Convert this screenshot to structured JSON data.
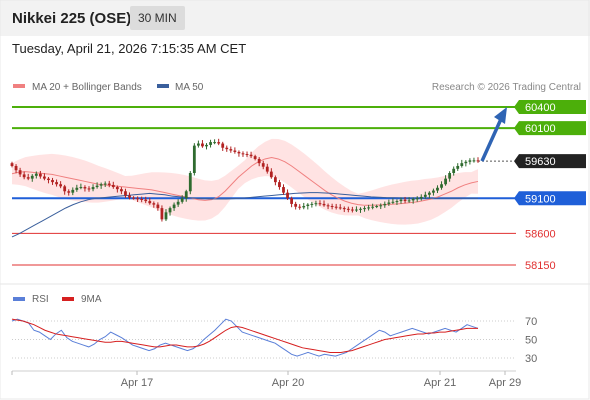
{
  "header": {
    "title": "Nikkei 225 (OSE)",
    "timeframe": "30 MIN",
    "timestamp": "Tuesday, April 21, 2026 7:15:35 AM CET"
  },
  "legend": {
    "ma20_bb": "MA 20 + Bollinger Bands",
    "ma50": "MA 50",
    "credit": "Research © 2026 Trading Central"
  },
  "rsi_legend": {
    "rsi": "RSI",
    "ma9": "9MA"
  },
  "colors": {
    "resistance": "#4caf0a",
    "support": "#1f5fd8",
    "target_red": "#e03030",
    "bollinger_fill": "#ffdede",
    "ma20": "#f08080",
    "ma50": "#3a5f9c",
    "candle_up": "#2f6b2f",
    "candle_down": "#b22222",
    "current_price": "#222222",
    "forecast_arrow": "#2f64b4",
    "rsi_line": "#5a7fd8",
    "rsi_ma": "#d62020"
  },
  "chart_data": {
    "type": "candlestick",
    "instrument": "Nikkei 225 (OSE)",
    "interval": "30 MIN",
    "ylim": [
      58050,
      60500
    ],
    "x_ticks": [
      "Apr 17",
      "Apr 20",
      "Apr 21",
      "Apr 29"
    ],
    "levels": [
      {
        "label": "60400",
        "value": 60400,
        "kind": "resistance"
      },
      {
        "label": "60100",
        "value": 60100,
        "kind": "resistance"
      },
      {
        "label": "59630",
        "value": 59630,
        "kind": "current"
      },
      {
        "label": "59100",
        "value": 59100,
        "kind": "support"
      },
      {
        "label": "58600",
        "value": 58600,
        "kind": "target"
      },
      {
        "label": "58150",
        "value": 58150,
        "kind": "target"
      }
    ],
    "close_series": [
      59560,
      59500,
      59440,
      59400,
      59380,
      59420,
      59450,
      59410,
      59380,
      59360,
      59330,
      59300,
      59270,
      59200,
      59180,
      59220,
      59250,
      59260,
      59240,
      59230,
      59260,
      59280,
      59300,
      59310,
      59290,
      59260,
      59230,
      59200,
      59140,
      59110,
      59100,
      59090,
      59080,
      59060,
      59030,
      59010,
      58960,
      58800,
      58900,
      58960,
      59010,
      59050,
      59100,
      59200,
      59460,
      59850,
      59880,
      59840,
      59860,
      59900,
      59900,
      59880,
      59820,
      59800,
      59780,
      59760,
      59740,
      59730,
      59720,
      59700,
      59660,
      59600,
      59550,
      59480,
      59400,
      59330,
      59260,
      59180,
      59100,
      59020,
      58980,
      58970,
      58990,
      59010,
      59020,
      59030,
      59020,
      59000,
      58990,
      58980,
      58970,
      58960,
      58950,
      58940,
      58930,
      58940,
      58950,
      58960,
      58970,
      58980,
      58990,
      59000,
      59020,
      59040,
      59050,
      59060,
      59080,
      59060,
      59070,
      59090,
      59100,
      59120,
      59150,
      59180,
      59210,
      59250,
      59300,
      59380,
      59460,
      59520,
      59560,
      59600,
      59620,
      59640,
      59640,
      59630
    ],
    "ma20_series": [
      59450,
      59470,
      59480,
      59470,
      59460,
      59450,
      59440,
      59420,
      59400,
      59380,
      59360,
      59340,
      59320,
      59300,
      59290,
      59280,
      59270,
      59260,
      59250,
      59240,
      59230,
      59220,
      59200,
      59180,
      59160,
      59140,
      59120,
      59100,
      59080,
      59070,
      59080,
      59120,
      59200,
      59300,
      59400,
      59480,
      59560,
      59620,
      59660,
      59680,
      59660,
      59620,
      59560,
      59490,
      59420,
      59350,
      59280,
      59210,
      59150,
      59100,
      59060,
      59030,
      59010,
      59000,
      59000,
      59005,
      59010,
      59015,
      59020,
      59030,
      59040,
      59050,
      59070,
      59090,
      59120,
      59160,
      59200,
      59250,
      59290,
      59320,
      59340
    ],
    "ma50_series": [
      58550,
      58600,
      58660,
      58720,
      58780,
      58840,
      58900,
      58960,
      59010,
      59050,
      59080,
      59100,
      59110,
      59120,
      59130,
      59140,
      59150,
      59160,
      59170,
      59160,
      59150,
      59130,
      59120,
      59110,
      59100,
      59095,
      59092,
      59090,
      59090,
      59095,
      59100,
      59110,
      59120,
      59130,
      59140,
      59150,
      59160,
      59170,
      59175,
      59180,
      59180,
      59175,
      59170,
      59160,
      59150,
      59140,
      59130,
      59120,
      59115,
      59110,
      59108,
      59105,
      59103,
      59102,
      59101,
      59100,
      59100,
      59100,
      59100,
      59100,
      59100,
      59100
    ],
    "forecast": {
      "from": 59630,
      "to": 60400
    },
    "rsi": {
      "yticks": [
        30,
        50,
        70
      ],
      "ylim": [
        20,
        85
      ],
      "rsi_series": [
        70,
        72,
        70,
        68,
        60,
        58,
        54,
        50,
        56,
        60,
        52,
        48,
        46,
        44,
        42,
        45,
        50,
        53,
        58,
        55,
        52,
        48,
        44,
        42,
        40,
        38,
        40,
        44,
        46,
        44,
        42,
        40,
        38,
        40,
        44,
        50,
        55,
        60,
        66,
        72,
        70,
        64,
        58,
        56,
        54,
        52,
        50,
        48,
        46,
        42,
        38,
        34,
        32,
        34,
        36,
        34,
        32,
        34,
        33,
        32,
        34,
        36,
        40,
        44,
        48,
        52,
        56,
        60,
        58,
        54,
        56,
        58,
        60,
        62,
        60,
        58,
        56,
        58,
        60,
        62,
        60,
        58,
        62,
        66,
        64,
        62
      ],
      "ma_series": [
        72,
        71,
        70,
        68,
        66,
        63,
        60,
        58,
        56,
        55,
        54,
        53,
        52,
        51,
        50,
        49,
        48,
        47,
        47,
        48,
        48,
        47,
        46,
        45,
        44,
        43,
        42,
        42,
        43,
        44,
        44,
        43,
        42,
        42,
        43,
        45,
        48,
        52,
        56,
        60,
        63,
        64,
        63,
        61,
        59,
        57,
        55,
        53,
        51,
        49,
        47,
        45,
        43,
        41,
        40,
        39,
        38,
        37,
        36,
        36,
        36,
        37,
        38,
        40,
        42,
        44,
        46,
        48,
        50,
        51,
        52,
        53,
        54,
        55,
        56,
        56,
        57,
        57,
        58,
        58,
        59,
        60,
        61,
        62,
        62,
        62
      ]
    }
  }
}
